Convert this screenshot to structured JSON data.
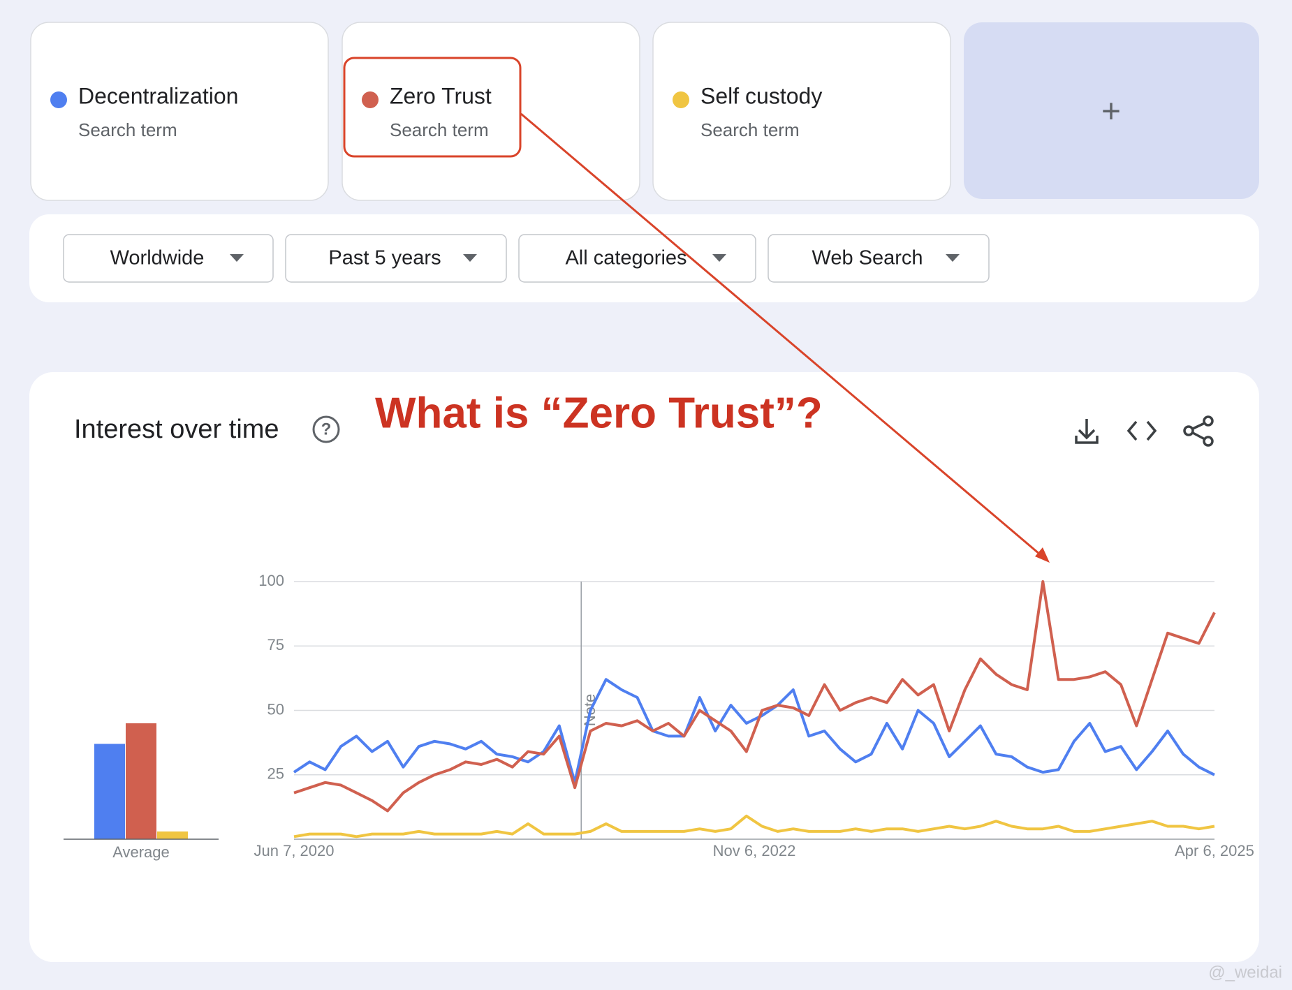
{
  "cards": [
    {
      "subtitle": "Search term"
    },
    {
      "subtitle": "Search term"
    },
    {
      "subtitle": "Search term"
    }
  ],
  "add_button": "+",
  "filters": [
    "Worldwide",
    "Past 5 years",
    "All categories",
    "Web Search"
  ],
  "panel_title": "Interest over time",
  "annotation": "What is “Zero Trust”?",
  "watermark": "@_weidai",
  "chart_data": [
    {
      "type": "bar",
      "xlabel": "Average",
      "values": [
        37,
        45,
        3
      ],
      "ylim": [
        0,
        100
      ]
    },
    {
      "type": "line",
      "ylim": [
        0,
        100
      ],
      "yticks": [
        25,
        50,
        75,
        100
      ],
      "grid": true,
      "xtick_labels": [
        "Jun 7, 2020",
        "Nov 6, 2022",
        "Apr 6, 2025"
      ],
      "note": "Note",
      "series": [
        {
          "name": "Decentralization",
          "color": "#4f7ff0",
          "values": [
            26,
            30,
            27,
            36,
            40,
            34,
            38,
            28,
            36,
            38,
            37,
            35,
            38,
            33,
            32,
            30,
            34,
            44,
            22,
            50,
            62,
            58,
            55,
            42,
            40,
            40,
            55,
            42,
            52,
            45,
            48,
            52,
            58,
            40,
            42,
            35,
            30,
            33,
            45,
            35,
            50,
            45,
            32,
            38,
            44,
            33,
            32,
            28,
            26,
            27,
            38,
            45,
            34,
            36,
            27,
            34,
            42,
            33,
            28,
            25
          ]
        },
        {
          "name": "Zero Trust",
          "color": "#d0604f",
          "values": [
            18,
            20,
            22,
            21,
            18,
            15,
            11,
            18,
            22,
            25,
            27,
            30,
            29,
            31,
            28,
            34,
            33,
            40,
            20,
            42,
            45,
            44,
            46,
            42,
            45,
            40,
            50,
            46,
            42,
            34,
            50,
            52,
            51,
            48,
            60,
            50,
            53,
            55,
            53,
            62,
            56,
            60,
            42,
            58,
            70,
            64,
            60,
            58,
            100,
            62,
            62,
            63,
            65,
            60,
            44,
            62,
            80,
            78,
            76,
            88
          ]
        },
        {
          "name": "Self custody",
          "color": "#f0c542",
          "values": [
            1,
            2,
            2,
            2,
            1,
            2,
            2,
            2,
            3,
            2,
            2,
            2,
            2,
            3,
            2,
            6,
            2,
            2,
            2,
            3,
            6,
            3,
            3,
            3,
            3,
            3,
            4,
            3,
            4,
            9,
            5,
            3,
            4,
            3,
            3,
            3,
            4,
            3,
            4,
            4,
            3,
            4,
            5,
            4,
            5,
            7,
            5,
            4,
            4,
            5,
            3,
            3,
            4,
            5,
            6,
            7,
            5,
            5,
            4,
            5
          ]
        }
      ]
    }
  ]
}
